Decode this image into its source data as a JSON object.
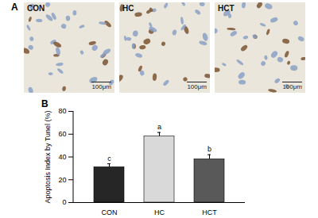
{
  "panel_a": {
    "label": "A",
    "images": [
      {
        "label": "CON",
        "scale_bar": "100μm"
      },
      {
        "label": "HC",
        "scale_bar": "100μm"
      },
      {
        "label": "HCT",
        "scale_bar": "100μm"
      }
    ]
  },
  "chart_data": {
    "type": "bar",
    "panel_label": "B",
    "ylabel": "Apoptosis Index by Tunel (%)",
    "categories": [
      "CON",
      "HC",
      "HCT"
    ],
    "values": [
      31,
      58,
      38
    ],
    "errors": [
      3,
      3.5,
      4
    ],
    "annotations": [
      "c",
      "a",
      "b"
    ],
    "colors": [
      "#262626",
      "#d9d9d9",
      "#595959"
    ],
    "ylim": [
      0,
      80
    ],
    "yticks": [
      0,
      20,
      40,
      60,
      80
    ],
    "grid": false
  }
}
